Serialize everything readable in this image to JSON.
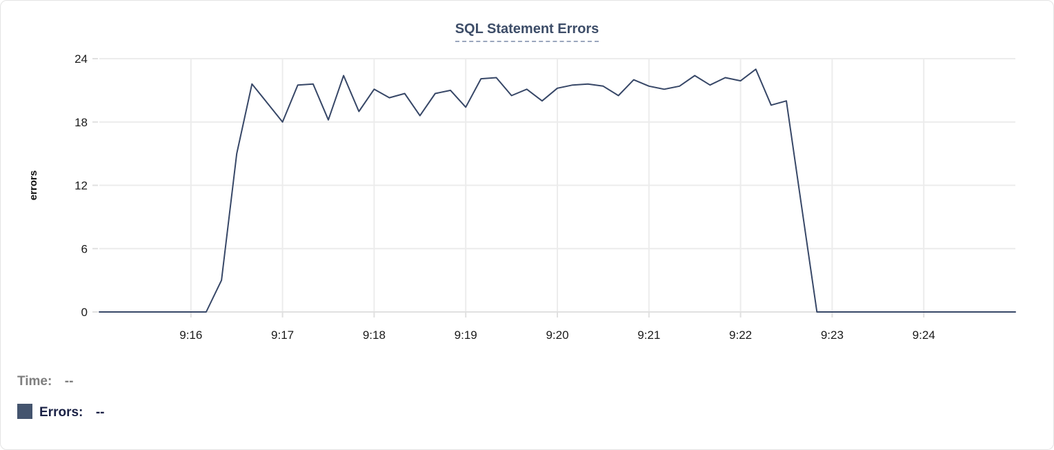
{
  "title": "SQL Statement Errors",
  "legend": {
    "time_label": "Time:",
    "time_value": "--",
    "errors_label": "Errors:",
    "errors_value": "--",
    "swatch_color": "#44546e"
  },
  "colors": {
    "line": "#374767",
    "grid": "#ececec",
    "axis": "#e0e0e0",
    "tick_text": "#1a1a1a",
    "axis_label_text": "#111111",
    "title_text": "#3d4d68",
    "title_underline": "#9aa6bd",
    "time_gray": "#7e7e7e",
    "errors_navy": "#1a2145"
  },
  "chart_data": {
    "type": "line",
    "title": "SQL Statement Errors",
    "xlabel": "",
    "ylabel": "errors",
    "ylim": [
      0,
      24
    ],
    "yticks": [
      0,
      6,
      12,
      18,
      24
    ],
    "xticks": [
      "9:16",
      "9:17",
      "9:18",
      "9:19",
      "9:20",
      "9:21",
      "9:22",
      "9:23",
      "9:24"
    ],
    "x_range": [
      "9:15:00",
      "9:25:00"
    ],
    "grid": true,
    "legend_position": "bottom-left",
    "series": [
      {
        "name": "Errors",
        "color": "#374767",
        "points": [
          [
            "9:15:00",
            0
          ],
          [
            "9:15:10",
            0
          ],
          [
            "9:15:20",
            0
          ],
          [
            "9:15:30",
            0
          ],
          [
            "9:15:40",
            0
          ],
          [
            "9:15:50",
            0
          ],
          [
            "9:16:00",
            0
          ],
          [
            "9:16:10",
            0
          ],
          [
            "9:16:20",
            3
          ],
          [
            "9:16:30",
            15
          ],
          [
            "9:16:40",
            21.6
          ],
          [
            "9:16:50",
            19.8
          ],
          [
            "9:17:00",
            18
          ],
          [
            "9:17:10",
            21.5
          ],
          [
            "9:17:20",
            21.6
          ],
          [
            "9:17:30",
            18.2
          ],
          [
            "9:17:40",
            22.4
          ],
          [
            "9:17:50",
            19
          ],
          [
            "9:18:00",
            21.1
          ],
          [
            "9:18:10",
            20.3
          ],
          [
            "9:18:20",
            20.7
          ],
          [
            "9:18:30",
            18.6
          ],
          [
            "9:18:40",
            20.7
          ],
          [
            "9:18:50",
            21
          ],
          [
            "9:19:00",
            19.4
          ],
          [
            "9:19:10",
            22.1
          ],
          [
            "9:19:20",
            22.2
          ],
          [
            "9:19:30",
            20.5
          ],
          [
            "9:19:40",
            21.1
          ],
          [
            "9:19:50",
            20
          ],
          [
            "9:20:00",
            21.2
          ],
          [
            "9:20:10",
            21.5
          ],
          [
            "9:20:20",
            21.6
          ],
          [
            "9:20:30",
            21.4
          ],
          [
            "9:20:40",
            20.5
          ],
          [
            "9:20:50",
            22
          ],
          [
            "9:21:00",
            21.4
          ],
          [
            "9:21:10",
            21.1
          ],
          [
            "9:21:20",
            21.4
          ],
          [
            "9:21:30",
            22.4
          ],
          [
            "9:21:40",
            21.5
          ],
          [
            "9:21:50",
            22.2
          ],
          [
            "9:22:00",
            21.9
          ],
          [
            "9:22:10",
            23
          ],
          [
            "9:22:20",
            19.6
          ],
          [
            "9:22:30",
            20
          ],
          [
            "9:22:40",
            10
          ],
          [
            "9:22:50",
            0
          ],
          [
            "9:23:00",
            0
          ],
          [
            "9:23:10",
            0
          ],
          [
            "9:23:20",
            0
          ],
          [
            "9:23:30",
            0
          ],
          [
            "9:23:40",
            0
          ],
          [
            "9:23:50",
            0
          ],
          [
            "9:24:00",
            0
          ],
          [
            "9:24:10",
            0
          ],
          [
            "9:24:20",
            0
          ],
          [
            "9:24:30",
            0
          ],
          [
            "9:24:40",
            0
          ],
          [
            "9:24:50",
            0
          ],
          [
            "9:25:00",
            0
          ]
        ]
      }
    ]
  }
}
